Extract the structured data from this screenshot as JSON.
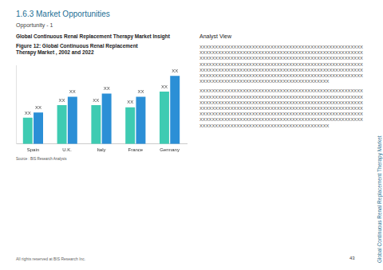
{
  "header": {
    "section": "1.6.3 Market Opportunities",
    "opportunity": "Opportunity - 1",
    "insight_title": "Global Continuous Renal Replacement Therapy Market Insight",
    "figure_caption": "Figure 12: Global Continuous Renal Replacement Therapy Market , 2002 and 2022"
  },
  "chart_data": {
    "type": "bar",
    "categories": [
      "Spain",
      "U.K.",
      "Italy",
      "France",
      "Germany"
    ],
    "series": [
      {
        "color": "#3ecbb2",
        "values": [
          25,
          37,
          37,
          35,
          50
        ],
        "value_labels": [
          "XX",
          "XX",
          "XX",
          "XX",
          "XX"
        ]
      },
      {
        "color": "#2b8fd6",
        "values": [
          30,
          45,
          48,
          45,
          65
        ],
        "value_labels": [
          "XX",
          "XX",
          "XX",
          "XX",
          "XX"
        ]
      }
    ],
    "ylim": [
      0,
      75
    ],
    "grid": false,
    "data_labels": true,
    "tick_labels": "x"
  },
  "source": "Source : BIS Research Analysis",
  "analyst_view": {
    "title": "Analyst View",
    "paragraphs": [
      [
        "XXXXXXXXXXXXXXXXXXXXXXXXXXXXXXXXXXXXXXXXXXXXXXXXXXXXX",
        "XXXXXXXXXXXXXXXXXXXXXXXXXXXXXXXXXXXXXXXXXXXXXXXXXXXXX",
        "XXXXXXXXXXXXXXXXXXXXXXXXXXXXXXXXXXXXXXXXXXXXXXXXXXXXX",
        "XXXXXXXXXXXXXXXXXXXXXXXXXXXXXXXXXXXXXXXXXXXXXXXXXXXXX",
        "XXXXXXXXXXXXXXXXXXXXXXXXXXXXXXXXXXXXXXXXXXXXXXXXXXXXX",
        "XXXXXXXXXXXXXXXXXXXXXXXXXXXXXXXXXXXXXXXXXXXXXXXXXXXXX",
        "XXXXXXXXXXXXXXXXXXXXXXXXXXXXXXXXXXXXXXXXXX"
      ],
      [
        "XXXXXXXXXXXXXXXXXXXXXXXXXXXXXXXXXXXXXXXXXXXXXXXXXXXXX",
        "XXXXXXXXXXXXXXXXXXXXXXXXXXXXXXXXXXXXXXXXXXXXXXXXXXXXX",
        "XXXXXXXXXXXXXXXXXXXXXXXXXXXXXXXXXXXXXXXXXXXXXXXXXXXXX",
        "XXXXXXXXXXXXXXXXXXXXXXXXXXXXXXXXXXXXXXXXXXXXXXXXXXXXX",
        "XXXXXXXXXXXXXXXXXXXXXXXXXXXXXXXXXXXXXXXXXXXXXXXXXXXXX",
        "XXXXXXXXXXXXXXXXXXXXXXXXXXXXXXXXXXXXXXXXXXXXXXXXXXXXX",
        "XXXXXXXXXXXXXXXXXXXXXXXXXXXXXXXXXXXXXXXXXX"
      ]
    ]
  },
  "footer": {
    "copyright": "All rights reserved at BIS Research Inc.",
    "page": "43"
  },
  "side_text": "Global Continuous Renal Replacement Therapy Market"
}
